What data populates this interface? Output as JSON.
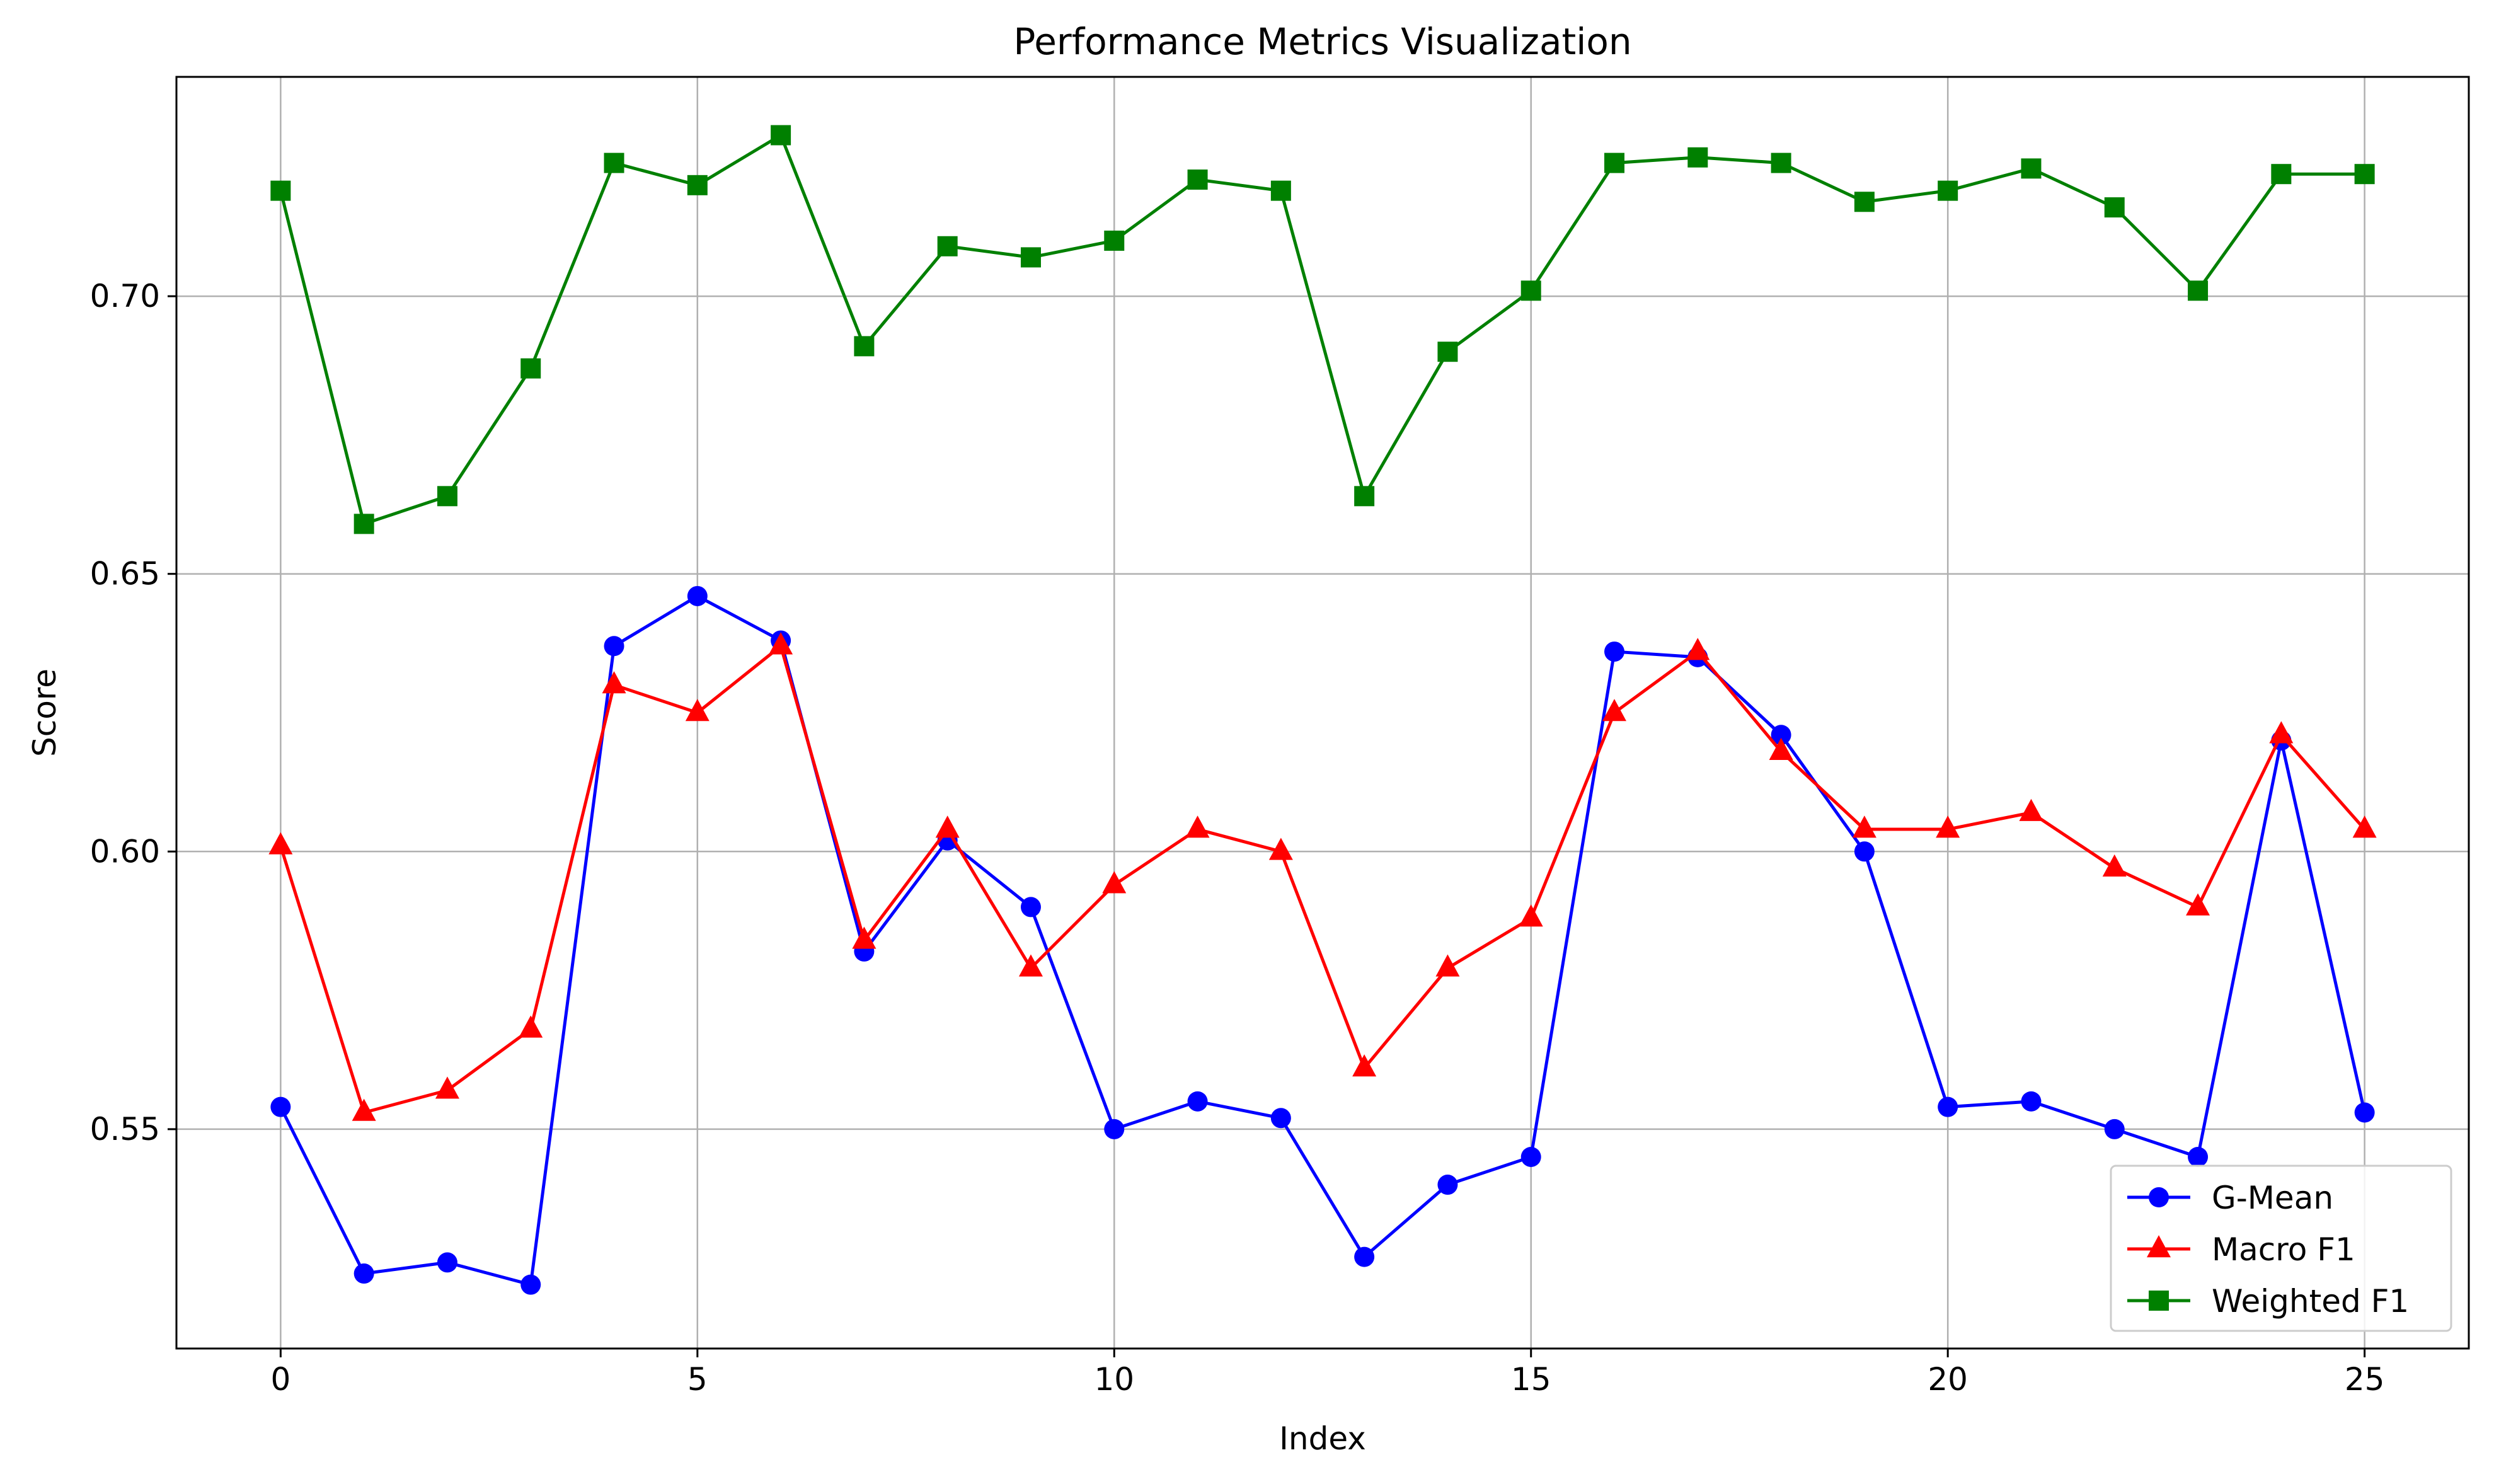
{
  "chart_data": {
    "type": "line",
    "title": "Performance Metrics Visualization",
    "xlabel": "Index",
    "ylabel": "Score",
    "xlim": [
      -1.25,
      26.25
    ],
    "ylim": [
      0.5105,
      0.7395
    ],
    "xticks": [
      0,
      5,
      10,
      15,
      20,
      25
    ],
    "xtick_labels": [
      "0",
      "5",
      "10",
      "15",
      "20",
      "25"
    ],
    "yticks": [
      0.55,
      0.6,
      0.65,
      0.7
    ],
    "ytick_labels": [
      "0.55",
      "0.60",
      "0.65",
      "0.70"
    ],
    "grid": true,
    "legend_position": "bottom-right",
    "x": [
      0,
      1,
      2,
      3,
      4,
      5,
      6,
      7,
      8,
      9,
      10,
      11,
      12,
      13,
      14,
      15,
      16,
      17,
      18,
      19,
      20,
      21,
      22,
      23,
      24,
      25
    ],
    "series": [
      {
        "name": "G-Mean",
        "color": "#0000ff",
        "marker": "circle",
        "values": [
          0.554,
          0.524,
          0.526,
          0.522,
          0.637,
          0.646,
          0.638,
          0.582,
          0.602,
          0.59,
          0.55,
          0.555,
          0.552,
          0.527,
          0.54,
          0.545,
          0.636,
          0.635,
          0.621,
          0.6,
          0.554,
          0.555,
          0.55,
          0.545,
          0.62,
          0.553
        ]
      },
      {
        "name": "Macro F1",
        "color": "#ff0000",
        "marker": "triangle",
        "values": [
          0.601,
          0.553,
          0.557,
          0.568,
          0.63,
          0.625,
          0.637,
          0.584,
          0.604,
          0.579,
          0.594,
          0.604,
          0.6,
          0.561,
          0.579,
          0.588,
          0.625,
          0.636,
          0.618,
          0.604,
          0.604,
          0.607,
          0.597,
          0.59,
          0.621,
          0.604
        ]
      },
      {
        "name": "Weighted F1",
        "color": "#008000",
        "marker": "square",
        "values": [
          0.719,
          0.659,
          0.664,
          0.687,
          0.724,
          0.72,
          0.729,
          0.691,
          0.709,
          0.707,
          0.71,
          0.721,
          0.719,
          0.664,
          0.69,
          0.701,
          0.724,
          0.725,
          0.724,
          0.717,
          0.719,
          0.723,
          0.716,
          0.701,
          0.722,
          0.722
        ]
      }
    ]
  }
}
